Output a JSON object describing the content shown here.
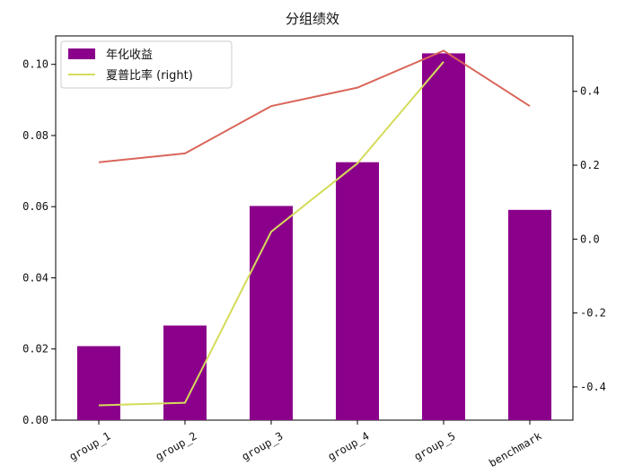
{
  "chart_data": {
    "type": "bar",
    "title": "分组绩效",
    "categories": [
      "group_1",
      "group_2",
      "group_3",
      "group_4",
      "group_5",
      "benchmark"
    ],
    "series": [
      {
        "name": "年化收益",
        "kind": "bar",
        "axis": "left",
        "color": "#8b008b",
        "values": [
          0.0208,
          0.0266,
          0.0602,
          0.0725,
          0.1031,
          0.0591
        ]
      },
      {
        "name": "夏普比率 (right)",
        "kind": "line",
        "axis": "right",
        "color": "#d4dc5a",
        "values": [
          -0.45,
          -0.443,
          0.02,
          0.205,
          0.48,
          null
        ]
      },
      {
        "kind": "line",
        "axis": "right",
        "color": "#d9665a",
        "values": [
          0.208,
          0.232,
          0.36,
          0.41,
          0.51,
          0.36
        ]
      }
    ],
    "ylim_left": [
      0.0,
      0.108
    ],
    "ylim_right": [
      -0.49,
      0.55
    ],
    "yticks_left": [
      "0.00",
      "0.02",
      "0.04",
      "0.06",
      "0.08",
      "0.10"
    ],
    "yticks_right": [
      "-0.4",
      "-0.2",
      "0.0",
      "0.2",
      "0.4"
    ],
    "legend_position": "top-left",
    "grid": false
  }
}
